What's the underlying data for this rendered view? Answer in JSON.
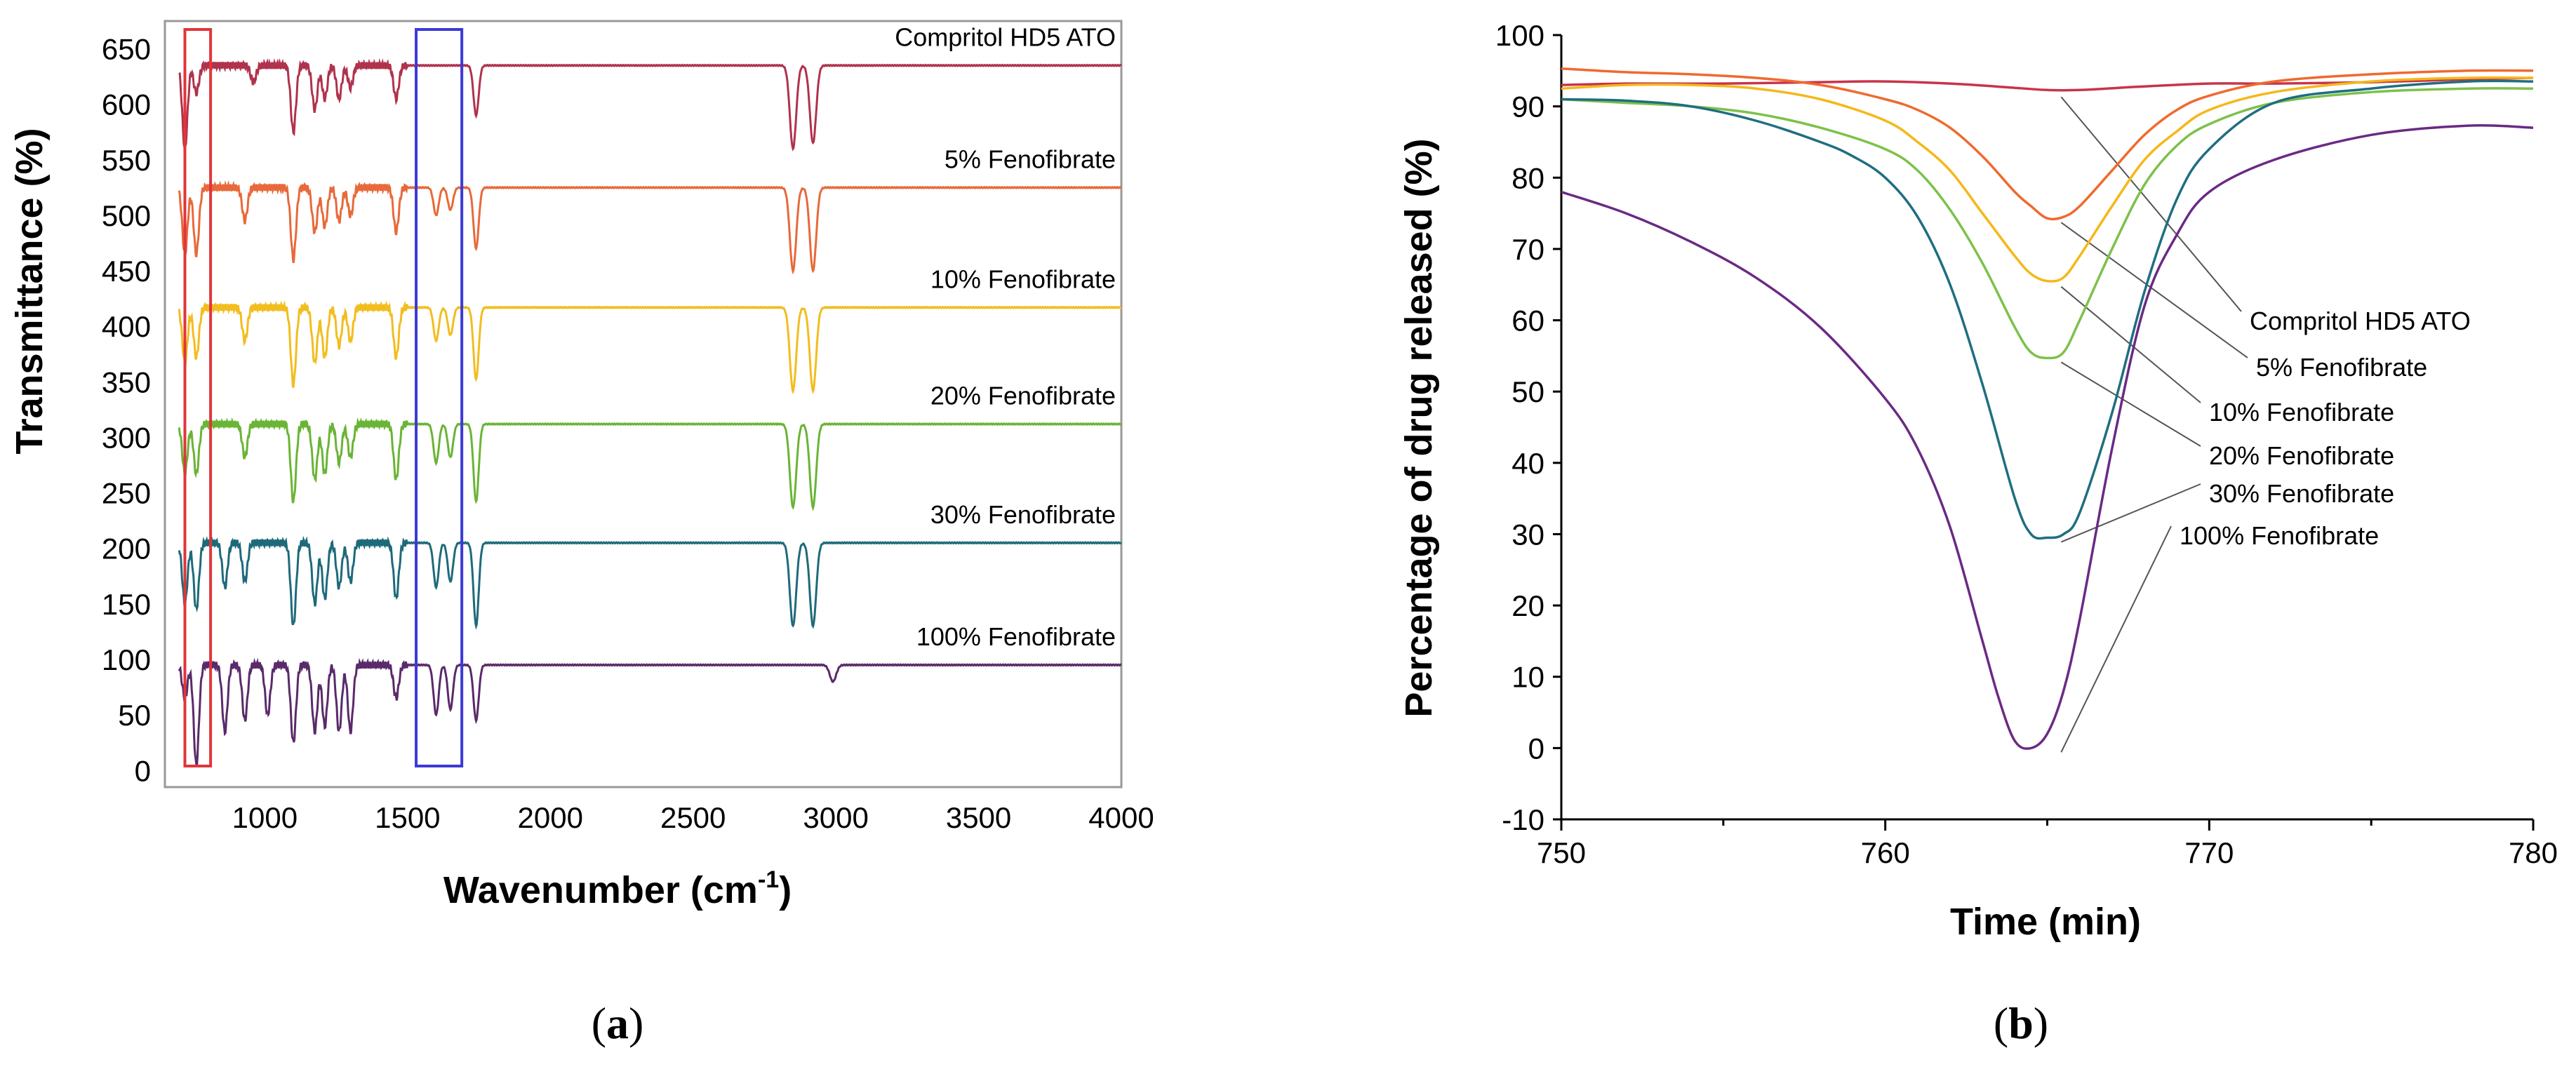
{
  "chart_data": [
    {
      "type": "line",
      "panel": "a",
      "caption_open": "(",
      "caption_letter": "a",
      "caption_close": ")",
      "xlabel_main": "Wavenumber (cm",
      "xlabel_sup": "-1",
      "xlabel_end": ")",
      "ylabel": "Transmittance (%)",
      "xlim": [
        650,
        4000
      ],
      "ylim": [
        -15,
        675
      ],
      "xticks": [
        1000,
        1500,
        2000,
        2500,
        3000,
        3500,
        4000
      ],
      "xtick_labels": [
        "1000",
        "1500",
        "2000",
        "2500",
        "3000",
        "3500",
        "4000"
      ],
      "yticks": [
        0,
        50,
        100,
        150,
        200,
        250,
        300,
        350,
        400,
        450,
        500,
        550,
        600,
        650
      ],
      "ytick_labels": [
        "0",
        "50",
        "100",
        "150",
        "200",
        "250",
        "300",
        "350",
        "400",
        "450",
        "500",
        "550",
        "600",
        "650"
      ],
      "highlight_regions": [
        {
          "x_range": [
            720,
            810
          ],
          "color": "#e0363a"
        },
        {
          "x_range": [
            1530,
            1690
          ],
          "color": "#3a3ad6"
        }
      ],
      "series": [
        {
          "name": "Compritol HD5 ATO",
          "color": "#b0324c",
          "baseline": 635,
          "dips": [
            [
              720,
              75
            ],
            [
              760,
              25
            ],
            [
              960,
              15
            ],
            [
              1100,
              60
            ],
            [
              1175,
              40
            ],
            [
              1210,
              30
            ],
            [
              1260,
              30
            ],
            [
              1300,
              20
            ],
            [
              1460,
              30
            ],
            [
              1740,
              45
            ],
            [
              2850,
              75
            ],
            [
              2920,
              70
            ]
          ]
        },
        {
          "name": "5% Fenofibrate",
          "color": "#e8693a",
          "baseline": 525,
          "dips": [
            [
              720,
              60
            ],
            [
              760,
              60
            ],
            [
              930,
              30
            ],
            [
              1100,
              65
            ],
            [
              1175,
              40
            ],
            [
              1210,
              35
            ],
            [
              1260,
              30
            ],
            [
              1300,
              25
            ],
            [
              1460,
              40
            ],
            [
              1600,
              25
            ],
            [
              1650,
              20
            ],
            [
              1740,
              55
            ],
            [
              2850,
              75
            ],
            [
              2920,
              75
            ]
          ]
        },
        {
          "name": "10% Fenofibrate",
          "color": "#f2bd1e",
          "baseline": 417,
          "dips": [
            [
              720,
              50
            ],
            [
              760,
              45
            ],
            [
              930,
              30
            ],
            [
              1100,
              70
            ],
            [
              1175,
              50
            ],
            [
              1210,
              45
            ],
            [
              1260,
              35
            ],
            [
              1300,
              30
            ],
            [
              1460,
              45
            ],
            [
              1600,
              30
            ],
            [
              1650,
              25
            ],
            [
              1740,
              65
            ],
            [
              2850,
              75
            ],
            [
              2920,
              75
            ]
          ]
        },
        {
          "name": "20% Fenofibrate",
          "color": "#6ab436",
          "baseline": 312,
          "dips": [
            [
              720,
              45
            ],
            [
              760,
              45
            ],
            [
              930,
              30
            ],
            [
              1100,
              70
            ],
            [
              1175,
              50
            ],
            [
              1210,
              45
            ],
            [
              1260,
              35
            ],
            [
              1300,
              30
            ],
            [
              1460,
              50
            ],
            [
              1600,
              35
            ],
            [
              1650,
              30
            ],
            [
              1740,
              70
            ],
            [
              2850,
              75
            ],
            [
              2920,
              75
            ]
          ]
        },
        {
          "name": "30% Fenofibrate",
          "color": "#1e6a7a",
          "baseline": 205,
          "dips": [
            [
              720,
              55
            ],
            [
              760,
              60
            ],
            [
              860,
              40
            ],
            [
              930,
              35
            ],
            [
              1100,
              75
            ],
            [
              1175,
              55
            ],
            [
              1210,
              50
            ],
            [
              1260,
              40
            ],
            [
              1300,
              35
            ],
            [
              1460,
              50
            ],
            [
              1600,
              40
            ],
            [
              1650,
              35
            ],
            [
              1740,
              75
            ],
            [
              2850,
              75
            ],
            [
              2920,
              75
            ]
          ]
        },
        {
          "name": "100% Fenofibrate",
          "color": "#5a2a6a",
          "baseline": 95,
          "dips": [
            [
              720,
              30
            ],
            [
              760,
              90
            ],
            [
              860,
              60
            ],
            [
              930,
              50
            ],
            [
              1010,
              45
            ],
            [
              1100,
              70
            ],
            [
              1175,
              60
            ],
            [
              1210,
              55
            ],
            [
              1260,
              60
            ],
            [
              1300,
              60
            ],
            [
              1460,
              30
            ],
            [
              1600,
              45
            ],
            [
              1650,
              40
            ],
            [
              1740,
              50
            ],
            [
              2990,
              15
            ]
          ]
        }
      ]
    },
    {
      "type": "line",
      "panel": "b",
      "caption_open": "(",
      "caption_letter": "b",
      "caption_close": ")",
      "xlabel": "Time (min)",
      "ylabel": "Percentage of drug released (%)",
      "xlim": [
        750,
        780
      ],
      "ylim": [
        -10,
        100
      ],
      "xticks": [
        750,
        760,
        770,
        780
      ],
      "xtick_labels": [
        "750",
        "760",
        "770",
        "780"
      ],
      "xminor": [
        755,
        765,
        775
      ],
      "yticks": [
        -10,
        0,
        10,
        20,
        30,
        40,
        50,
        60,
        70,
        80,
        90,
        100
      ],
      "ytick_labels": [
        "-10",
        "0",
        "10",
        "20",
        "30",
        "40",
        "50",
        "60",
        "70",
        "80",
        "90",
        "100"
      ],
      "series": [
        {
          "name": "Compritol HD5 ATO",
          "color": "#c8344a",
          "x": [
            750,
            752,
            755,
            758,
            760,
            762,
            764,
            765,
            766,
            768,
            770,
            772,
            775,
            778,
            780
          ],
          "y": [
            93,
            93.2,
            93.2,
            93.4,
            93.5,
            93.2,
            92.6,
            92.3,
            92.3,
            92.8,
            93.2,
            93.2,
            93.4,
            93.8,
            94
          ],
          "leader_point": [
            765.3,
            92.3
          ]
        },
        {
          "name": "5% Fenofibrate",
          "color": "#ef6a2e",
          "x": [
            750,
            752,
            754,
            756,
            758,
            760,
            761,
            762,
            763,
            764,
            764.5,
            765,
            765.5,
            766,
            767,
            768,
            769,
            770,
            772,
            775,
            778,
            780
          ],
          "y": [
            95.3,
            94.8,
            94.5,
            94,
            93,
            91,
            89.5,
            87,
            83,
            78,
            76,
            74.3,
            74.5,
            76,
            81,
            86,
            89.5,
            91.5,
            93.5,
            94.5,
            95,
            95
          ],
          "leader_point": [
            765.3,
            74.3
          ]
        },
        {
          "name": "10% Fenofibrate",
          "color": "#f5b81a",
          "x": [
            750,
            752,
            754,
            756,
            758,
            760,
            761,
            762,
            763,
            764,
            764.5,
            765,
            765.5,
            766,
            767,
            768,
            769,
            770,
            772,
            775,
            778,
            780
          ],
          "y": [
            92.5,
            93,
            93,
            92.5,
            91,
            88,
            85,
            81,
            75,
            69,
            66.5,
            65.5,
            66,
            69,
            76,
            82.5,
            86.5,
            89.5,
            92,
            93.5,
            94,
            94
          ],
          "leader_point": [
            765.3,
            65.3
          ]
        },
        {
          "name": "20% Fenofibrate",
          "color": "#7dc14a",
          "x": [
            750,
            752,
            754,
            756,
            758,
            760,
            761,
            762,
            763,
            764,
            764.5,
            765,
            765.5,
            766,
            767,
            768,
            769,
            770,
            772,
            775,
            778,
            780
          ],
          "y": [
            91,
            90.5,
            90,
            89,
            87,
            84,
            81,
            75.5,
            68,
            59,
            55.5,
            54.7,
            55.5,
            60,
            70,
            79,
            84.5,
            87.5,
            90.5,
            92,
            92.5,
            92.5
          ],
          "leader_point": [
            765.3,
            54.7
          ]
        },
        {
          "name": "30% Fenofibrate",
          "color": "#1f6e80",
          "x": [
            750,
            752,
            754,
            756,
            758,
            759,
            760,
            761,
            762,
            763,
            764,
            764.5,
            765,
            765.5,
            766,
            767,
            768,
            769,
            770,
            772,
            775,
            778,
            780
          ],
          "y": [
            91,
            90.8,
            90,
            88,
            85,
            83,
            80,
            74.5,
            65,
            51,
            35,
            30,
            29.5,
            30,
            33,
            47,
            64,
            77,
            84,
            90.5,
            92.5,
            93.5,
            93.5
          ],
          "leader_point": [
            765.3,
            29.5
          ]
        },
        {
          "name": "100% Fenofibrate",
          "color": "#6a2a84",
          "x": [
            750,
            752,
            754,
            756,
            758,
            760,
            761,
            762,
            763,
            763.5,
            764,
            764.5,
            765,
            765.5,
            766,
            767,
            768,
            769,
            770,
            772,
            775,
            778,
            780
          ],
          "y": [
            78,
            75,
            71,
            66,
            59,
            49,
            42,
            31,
            15,
            7,
            1,
            0,
            2,
            8,
            18,
            42,
            62,
            72,
            78,
            82.5,
            86,
            87.3,
            87
          ],
          "leader_point": [
            765.3,
            0
          ]
        }
      ]
    }
  ]
}
